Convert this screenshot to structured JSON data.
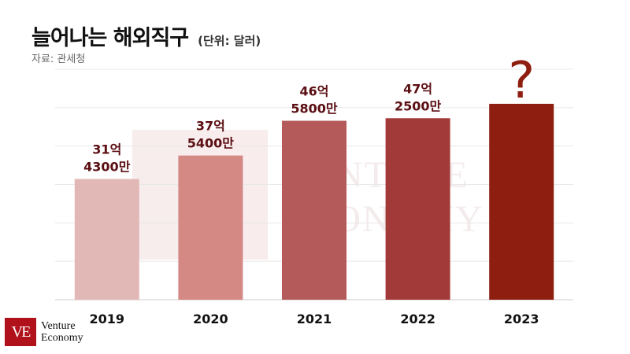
{
  "header": {
    "title": "늘어나는 해외직구",
    "unit": "(단위: 달러)",
    "source": "자료: 관세청"
  },
  "logo": {
    "mark": "VE",
    "line1": "Venture",
    "line2": "Economy"
  },
  "watermark": {
    "line1": "VENTURE",
    "line2": "ECONOMY"
  },
  "colors": {
    "bars": [
      "#e2b8b7",
      "#d48985",
      "#b55a5a",
      "#a33a3a",
      "#8e1f10"
    ],
    "label": "#5a0e12",
    "grid": "#e8e8e8",
    "brand": "#b1111a"
  },
  "chart_data": {
    "type": "bar",
    "title": "늘어나는 해외직구",
    "subtitle": "(단위: 달러)",
    "xlabel": "",
    "ylabel": "",
    "categories": [
      "2019",
      "2020",
      "2021",
      "2022",
      "2023"
    ],
    "values": [
      3143000000,
      3754000000,
      4658000000,
      4725000000,
      null
    ],
    "data_labels": [
      [
        "31억",
        "4300만"
      ],
      [
        "37억",
        "5400만"
      ],
      [
        "46억",
        "5800만"
      ],
      [
        "47억",
        "2500만"
      ],
      [
        "?"
      ]
    ],
    "unknown_value_estimate": 5100000000,
    "ylim": [
      0,
      6000000000
    ],
    "grid": true,
    "legend": "none"
  }
}
